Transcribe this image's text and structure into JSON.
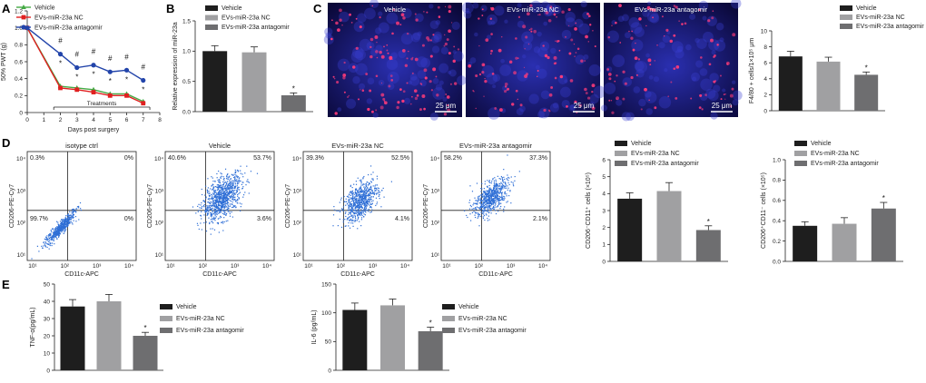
{
  "colors": {
    "vehicle_bar": "#1e1e1e",
    "nc_bar": "#a0a0a2",
    "antagomir_bar": "#6e6e70",
    "line_vehicle": "#44aa44",
    "line_nc": "#e02020",
    "line_antagomir": "#2244aa",
    "facs_dots": "#2f6fd6",
    "micro_bg": "#13127a",
    "micro_dots": "#ff3b7a"
  },
  "panels": {
    "A": "A",
    "B": "B",
    "C": "C",
    "D": "D",
    "E": "E"
  },
  "chart_data": [
    {
      "id": "A",
      "type": "line",
      "xlabel": "Days post surgery",
      "ylabel": "50% PWT (g)",
      "annotation": "Treatments",
      "xlim": [
        0,
        8
      ],
      "ylim": [
        0,
        1.2
      ],
      "xticks": [
        "0",
        "1",
        "2",
        "3",
        "4",
        "5",
        "6",
        "7",
        "8"
      ],
      "yticks": [
        "0",
        "0.2",
        "0.4",
        "0.6",
        "0.8",
        "1.0",
        "1.2"
      ],
      "x": [
        0,
        2,
        3,
        4,
        5,
        6,
        7
      ],
      "series": [
        {
          "name": "Vehicle",
          "color": "#44aa44",
          "marker": "triangle",
          "values": [
            1.0,
            0.31,
            0.29,
            0.27,
            0.22,
            0.22,
            0.13
          ]
        },
        {
          "name": "EVs-miR-23a NC",
          "color": "#e02020",
          "marker": "square",
          "values": [
            1.0,
            0.29,
            0.27,
            0.24,
            0.2,
            0.2,
            0.11
          ]
        },
        {
          "name": "EVs-miR-23a antagomir",
          "color": "#2244aa",
          "marker": "circle",
          "values": [
            1.0,
            0.69,
            0.53,
            0.56,
            0.48,
            0.5,
            0.38
          ]
        }
      ],
      "hash_marks": [
        "#",
        "#",
        "#",
        "#",
        "#",
        "#"
      ],
      "star_marks": [
        "*",
        "*",
        "*",
        "*",
        "*",
        "*"
      ]
    },
    {
      "id": "B",
      "type": "bar",
      "ylabel": "Relative expression of miR-23a",
      "ylim": [
        0,
        1.5
      ],
      "yticks": [
        "0.0",
        "0.5",
        "1.0",
        "1.5"
      ],
      "categories": [
        "Vehicle",
        "EVs-miR-23a NC",
        "EVs-miR-23a antagomir"
      ],
      "values": [
        1.0,
        0.98,
        0.27
      ],
      "errors": [
        0.09,
        0.09,
        0.04
      ],
      "significance": [
        "",
        "",
        "*"
      ]
    },
    {
      "id": "C",
      "type": "bar",
      "ylabel": "F4/80 + cells/1×10⁵ μm",
      "ylim": [
        0,
        10
      ],
      "yticks": [
        "0",
        "2",
        "4",
        "6",
        "8",
        "10"
      ],
      "categories": [
        "Vehicle",
        "EVs-miR-23a NC",
        "EVs-miR-23a antagomir"
      ],
      "values": [
        6.8,
        6.15,
        4.5
      ],
      "errors": [
        0.65,
        0.55,
        0.35
      ],
      "significance": [
        "",
        "",
        "*"
      ]
    },
    {
      "id": "D1",
      "type": "bar",
      "ylabel": "CD206⁻CD11⁺ cells (×10⁵)",
      "ylim": [
        0,
        6
      ],
      "yticks": [
        "0",
        "1",
        "2",
        "3",
        "4",
        "5",
        "6"
      ],
      "categories": [
        "Vehicle",
        "EVs-miR-23a NC",
        "EVs-miR-23a antagomir"
      ],
      "values": [
        3.7,
        4.15,
        1.85
      ],
      "errors": [
        0.35,
        0.5,
        0.25
      ],
      "significance": [
        "",
        "",
        "*"
      ]
    },
    {
      "id": "D2",
      "type": "bar",
      "ylabel": "CD206⁺CD11⁻ cells (×10⁵)",
      "ylim": [
        0,
        1.0
      ],
      "yticks": [
        "0.0",
        "0.2",
        "0.4",
        "0.6",
        "0.8",
        "1.0"
      ],
      "categories": [
        "Vehicle",
        "EVs-miR-23a NC",
        "EVs-miR-23a antagomir"
      ],
      "values": [
        0.35,
        0.37,
        0.52
      ],
      "errors": [
        0.04,
        0.06,
        0.06
      ],
      "significance": [
        "",
        "",
        "*"
      ]
    },
    {
      "id": "E1",
      "type": "bar",
      "ylabel": "TNF-α(pg/mL)",
      "ylim": [
        0,
        50
      ],
      "yticks": [
        "0",
        "10",
        "20",
        "30",
        "40",
        "50"
      ],
      "categories": [
        "Vehicle",
        "EVs-miR-23a NC",
        "EVs-miR-23a antagomir"
      ],
      "values": [
        37,
        40,
        20
      ],
      "errors": [
        4,
        4,
        2
      ],
      "significance": [
        "",
        "",
        "*"
      ]
    },
    {
      "id": "E2",
      "type": "bar",
      "ylabel": "IL-6 (pg/mL)",
      "ylim": [
        0,
        150
      ],
      "yticks": [
        "0",
        "50",
        "100",
        "150"
      ],
      "categories": [
        "Vehicle",
        "EVs-miR-23a NC",
        "EVs-miR-23a antagomir"
      ],
      "values": [
        105,
        113,
        68
      ],
      "errors": [
        12,
        11,
        7
      ],
      "significance": [
        "",
        "",
        "*"
      ]
    }
  ],
  "micrographs": {
    "titles": [
      "Vehicle",
      "EVs-miR-23a NC",
      "EVs-miR-23a antagomir"
    ],
    "scale_bar": "25 μm"
  },
  "facs": {
    "xlabel": "CD11c-APC",
    "ylabel": "CD206-PE-Cy7",
    "axis_ticks": [
      "10¹",
      "10²",
      "10³",
      "10⁴"
    ],
    "plots": [
      {
        "title": "isotype ctrl",
        "q_ul": "0.3%",
        "q_ur": "0%",
        "q_ll": "99.7%",
        "q_lr": "0%"
      },
      {
        "title": "Vehicle",
        "q_ul": "40.6%",
        "q_ur": "53.7%",
        "q_ll": "",
        "q_lr": "3.6%"
      },
      {
        "title": "EVs-miR-23a NC",
        "q_ul": "39.3%",
        "q_ur": "52.5%",
        "q_ll": "",
        "q_lr": "4.1%"
      },
      {
        "title": "EVs-miR-23a antagomir",
        "q_ul": "58.2%",
        "q_ur": "37.3%",
        "q_ll": "",
        "q_lr": "2.1%"
      }
    ]
  }
}
